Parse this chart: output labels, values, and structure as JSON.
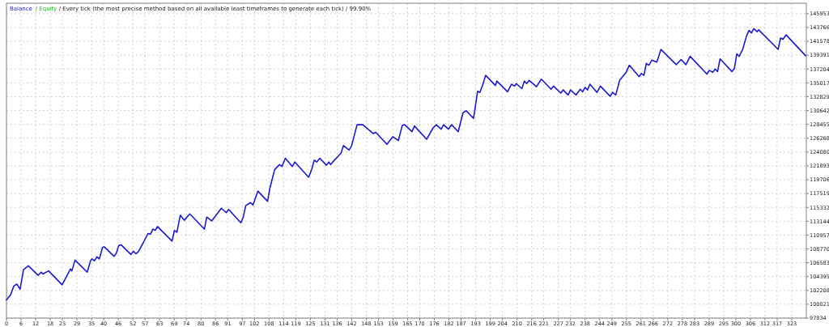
{
  "chart_data": {
    "type": "line",
    "title": "/ Equity / Every tick (the most precise method based on all available least timeframes to generate each tick) / 99.90%",
    "series": [
      {
        "name": "Balance",
        "color": "#1a1acc",
        "x": [
          0,
          1.7,
          3.0,
          4.3,
          5.6,
          7.0,
          9.0,
          13.0,
          14.3,
          15.0,
          17.3,
          22.9,
          26.3,
          26.9,
          28.2,
          33.2,
          34.6,
          35.2,
          36.2,
          37.2,
          38.2,
          39.5,
          40.2,
          44.2,
          45.2,
          46.2,
          47.2,
          51.2,
          52.2,
          53.2,
          54.2,
          56.2,
          58.2,
          59.2,
          60.2,
          61.2,
          62.1,
          68.1,
          69.1,
          70.1,
          71.5,
          73.1,
          75.4,
          81.4,
          82.4,
          84.4,
          88.4,
          90.4,
          91.4,
          96.4,
          97.4,
          98.4,
          100.4,
          101.4,
          103.4,
          107.4,
          108.3,
          110.3,
          112.3,
          113.3,
          114.7,
          117.6,
          118.6,
          124.3,
          125.6,
          126.6,
          127.6,
          128.9,
          131.6,
          132.6,
          133.3,
          134.9,
          137.6,
          138.6,
          140.9,
          141.9,
          144.2,
          146.6,
          150.9,
          151.9,
          156.5,
          158.9,
          161.2,
          162.8,
          163.8,
          166.8,
          167.8,
          172.8,
          175.5,
          176.8,
          178.8,
          179.8,
          181.8,
          183.1,
          185.8,
          187.8,
          189.1,
          192.1,
          193.8,
          194.7,
          195.7,
          197.1,
          201.1,
          201.7,
          206.1,
          207.7,
          209.0,
          209.7,
          212.0,
          213.0,
          214.0,
          215.0,
          218.0,
          220.0,
          224.0,
          225.0,
          228.0,
          229.0,
          231.0,
          232.0,
          234.3,
          236.0,
          237.0,
          238.0,
          239.0,
          240.0,
          242.9,
          244.3,
          248.3,
          249.3,
          250.6,
          252.2,
          254.9,
          256.2,
          260.2,
          261.2,
          262.2,
          263.2,
          264.2,
          265.5,
          267.5,
          269.2,
          275.5,
          277.5,
          279.5,
          281.2,
          288.1,
          289.1,
          290.5,
          291.5,
          292.5,
          293.5,
          298.4,
          299.4,
          300.4,
          301.4,
          302.8,
          304.4,
          305.4,
          306.4,
          307.4,
          308.7,
          309.4,
          317.4,
          318.4,
          319.4,
          320.7,
          328.7
        ],
        "values": [
          100700,
          101500,
          102900,
          103200,
          102400,
          105500,
          106100,
          104600,
          105100,
          104800,
          105300,
          103100,
          105600,
          105300,
          107000,
          105100,
          106900,
          107200,
          106900,
          107500,
          107200,
          109000,
          109100,
          107600,
          108100,
          109300,
          109400,
          107900,
          108400,
          108000,
          108300,
          109700,
          111200,
          111100,
          111900,
          111700,
          112300,
          110000,
          111700,
          111400,
          114100,
          113300,
          114300,
          111900,
          113800,
          113200,
          115200,
          114500,
          115000,
          112900,
          113800,
          115600,
          116100,
          115700,
          117900,
          116300,
          118300,
          121300,
          122100,
          121800,
          123100,
          121800,
          122500,
          120100,
          121400,
          122800,
          122500,
          123100,
          122000,
          122500,
          122100,
          122800,
          123900,
          125100,
          124400,
          125000,
          128400,
          128400,
          127000,
          127200,
          125300,
          126500,
          125900,
          128300,
          128400,
          127300,
          128200,
          126100,
          127900,
          128400,
          127700,
          128400,
          127700,
          128400,
          127300,
          130300,
          130600,
          129400,
          133700,
          133500,
          134500,
          136200,
          134600,
          135300,
          133600,
          134800,
          134500,
          134900,
          134100,
          135300,
          134900,
          135400,
          134400,
          135600,
          134000,
          134500,
          133400,
          133900,
          133100,
          133900,
          133100,
          134000,
          133600,
          134300,
          133900,
          134800,
          133500,
          134500,
          132900,
          133500,
          133100,
          135400,
          136700,
          137800,
          136000,
          136500,
          136200,
          138100,
          137800,
          138600,
          138300,
          140300,
          137900,
          138700,
          137900,
          139200,
          136400,
          137000,
          136700,
          137200,
          136800,
          138800,
          136800,
          137300,
          139600,
          139200,
          140300,
          142400,
          143300,
          142900,
          143600,
          143100,
          143400,
          140300,
          142100,
          141900,
          142600,
          139300
        ]
      }
    ],
    "xlim": [
      0,
      329
    ],
    "xticks": [
      0,
      6,
      12,
      18,
      23,
      29,
      35,
      40,
      46,
      52,
      57,
      63,
      69,
      74,
      80,
      86,
      91,
      97,
      102,
      108,
      114,
      119,
      125,
      131,
      136,
      142,
      148,
      153,
      159,
      165,
      170,
      176,
      182,
      187,
      193,
      199,
      204,
      210,
      216,
      221,
      227,
      232,
      238,
      244,
      249,
      255,
      261,
      266,
      272,
      278,
      283,
      289,
      295,
      300,
      306,
      312,
      317,
      323
    ],
    "ylim": [
      97834,
      147600
    ],
    "yticks": [
      97834,
      100021,
      102208,
      104395,
      106583,
      108770,
      110957,
      113144,
      115332,
      117519,
      119706,
      121893,
      124080,
      126268,
      128455,
      130642,
      132829,
      135017,
      137204,
      139391,
      141578,
      143766,
      145953
    ],
    "grid": true,
    "legend": "top left",
    "marker": "none",
    "line_style": "solid"
  }
}
